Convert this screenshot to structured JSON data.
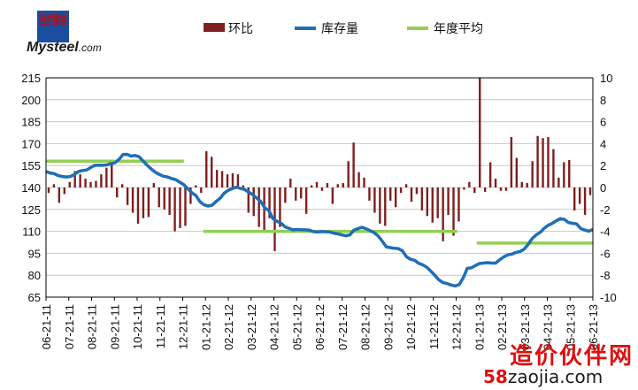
{
  "logo": {
    "text_cn": "我的钢铁",
    "brand": "Mysteel",
    "domain": ".com"
  },
  "watermark": {
    "title": "造价伙伴网",
    "url_prefix": "58",
    "url_rest": "zaojia.com"
  },
  "colors": {
    "bar": "#7f1f1f",
    "inventory": "#1f6eb8",
    "average": "#92cf50",
    "axis": "#000000",
    "grid": "#c8c8c8"
  },
  "chart_data": {
    "type": "bar+line",
    "legend_position": "top",
    "grid": "horizontal",
    "x_ticks": [
      "06-21-11",
      "07-21-11",
      "08-21-11",
      "09-21-11",
      "10-21-11",
      "11-21-11",
      "12-21-11",
      "01-21-12",
      "02-21-12",
      "03-21-12",
      "04-21-12",
      "05-21-12",
      "06-21-12",
      "07-21-12",
      "08-21-12",
      "09-21-12",
      "10-21-12",
      "11-21-12",
      "12-21-12",
      "01-21-13",
      "02-21-13",
      "03-21-13",
      "04-21-13",
      "05-21-13",
      "06-21-13"
    ],
    "y_left": {
      "min": 65,
      "max": 215,
      "ticks": [
        65,
        80,
        95,
        110,
        125,
        140,
        155,
        170,
        185,
        200,
        215
      ]
    },
    "y_right": {
      "min": -10,
      "max": 10,
      "ticks": [
        -10,
        -8,
        -6,
        -4,
        -2,
        0,
        2,
        4,
        6,
        8,
        10
      ]
    },
    "series": [
      {
        "name": "环比",
        "type": "bar",
        "axis": "right",
        "values": [
          -0.5,
          0.3,
          -1.4,
          -0.6,
          0.5,
          1.5,
          1.2,
          0.8,
          0.5,
          0.6,
          1.2,
          1.8,
          2.5,
          -0.9,
          0.3,
          -1.6,
          -2.3,
          -3.3,
          -2.8,
          -2.7,
          0.4,
          -1.8,
          -2.0,
          -2.5,
          -4.0,
          -3.7,
          -3.5,
          -1.5,
          0.2,
          -0.5,
          3.3,
          2.8,
          1.6,
          1.5,
          1.2,
          1.3,
          1.2,
          0.2,
          -2.3,
          -2.6,
          -3.6,
          -4.0,
          -2.8,
          -5.8,
          -3.6,
          -1.4,
          0.8,
          -1.2,
          -1.0,
          -2.4,
          0.2,
          0.5,
          -0.3,
          0.4,
          -1.5,
          0.3,
          0.4,
          2.4,
          4.1,
          1.4,
          0.9,
          -1.2,
          -2.3,
          -3.3,
          -3.5,
          -1.2,
          -1.8,
          -0.5,
          0.3,
          -1.3,
          -0.6,
          -2.1,
          -2.6,
          -3.2,
          -2.8,
          -4.9,
          -2.5,
          -4.4,
          -3.1,
          -0.2,
          0.5,
          -0.5,
          10.0,
          -0.4,
          2.3,
          0.8,
          -0.3,
          -0.3,
          4.6,
          2.7,
          0.5,
          0.4,
          2.4,
          4.7,
          4.5,
          4.6,
          3.5,
          0.9,
          2.3,
          2.5,
          -2.1,
          -1.5,
          -2.5,
          -0.7
        ]
      },
      {
        "name": "库存量",
        "type": "line",
        "axis": "left",
        "values": [
          150.8,
          149.9,
          149.5,
          148.1,
          147.5,
          147.2,
          147.5,
          148.8,
          150.9,
          151.6,
          152.0,
          153.6,
          155.1,
          155.3,
          155.2,
          155.4,
          156.3,
          156.9,
          159.1,
          162.5,
          162.7,
          161.5,
          161.9,
          161.0,
          157.9,
          155.2,
          152.6,
          150.4,
          148.9,
          147.7,
          147.2,
          146.1,
          145.4,
          143.6,
          142.0,
          139.2,
          136.4,
          134.5,
          130.2,
          128.2,
          127.3,
          127.9,
          130.5,
          132.7,
          136.1,
          138.1,
          139.3,
          140.2,
          139.4,
          138.6,
          136.9,
          135.1,
          132.8,
          130.5,
          126.1,
          124.2,
          118.7,
          116.9,
          115.6,
          113.1,
          112.0,
          111.0,
          111.3,
          111.1,
          111.0,
          110.8,
          109.8,
          109.5,
          109.8,
          109.7,
          109.6,
          108.8,
          108.3,
          107.6,
          107.0,
          107.5,
          110.7,
          111.9,
          112.8,
          111.8,
          110.5,
          109.1,
          106.8,
          103.3,
          99.4,
          98.9,
          98.4,
          98.2,
          96.6,
          92.6,
          90.9,
          90.2,
          88.1,
          87.1,
          85.5,
          82.8,
          79.8,
          76.8,
          75.0,
          74.3,
          73.3,
          72.7,
          73.6,
          78.2,
          84.7,
          85.0,
          86.6,
          88.0,
          88.3,
          88.6,
          88.3,
          88.3,
          90.6,
          92.5,
          93.9,
          94.4,
          95.6,
          96.2,
          97.7,
          101.0,
          105.0,
          107.6,
          109.3,
          112.2,
          114.2,
          115.5,
          117.3,
          118.7,
          118.1,
          116.0,
          115.5,
          115.1,
          111.9,
          110.9,
          110.1,
          111.2
        ]
      },
      {
        "name": "年度平均",
        "type": "segments",
        "axis": "left",
        "segments": [
          {
            "from": "06-21-11",
            "to": "12-21-11",
            "value": 158
          },
          {
            "from": "01-21-12",
            "to": "12-21-12",
            "value": 110
          },
          {
            "from": "01-21-13",
            "to": "06-21-13",
            "value": 102
          }
        ]
      }
    ]
  }
}
